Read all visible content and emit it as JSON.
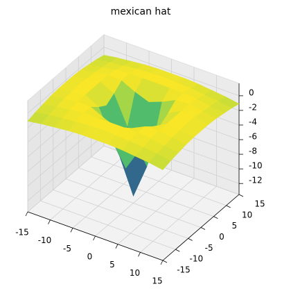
{
  "chart_data": {
    "type": "surface",
    "title": "mexican hat",
    "x": [
      -15,
      -12,
      -9,
      -6,
      -3,
      0,
      3,
      6,
      9,
      12,
      15
    ],
    "y": [
      -15,
      -12,
      -9,
      -6,
      -3,
      0,
      3,
      6,
      9,
      12,
      15
    ],
    "z": [
      [
        -1.1,
        -0.8,
        -0.6,
        -0.4,
        -0.3,
        -0.3,
        -0.3,
        -0.4,
        -0.6,
        -0.8,
        -1.1
      ],
      [
        -0.8,
        -0.5,
        -0.3,
        -0.1,
        0.0,
        0.1,
        0.0,
        -0.1,
        -0.3,
        -0.5,
        -0.8
      ],
      [
        -0.6,
        -0.3,
        0.0,
        0.2,
        0.2,
        0.2,
        0.2,
        0.2,
        0.0,
        -0.3,
        -0.6
      ],
      [
        -0.4,
        -0.1,
        0.2,
        0.1,
        -0.8,
        -1.5,
        -0.8,
        0.1,
        0.2,
        -0.1,
        -0.4
      ],
      [
        -0.3,
        0.0,
        0.2,
        -0.8,
        -4.7,
        -7.8,
        -4.7,
        -0.8,
        0.2,
        0.0,
        -0.3
      ],
      [
        -0.3,
        0.1,
        0.2,
        -1.5,
        -7.8,
        -12.5,
        -7.8,
        -1.5,
        0.2,
        0.1,
        -0.3
      ],
      [
        -0.3,
        0.0,
        0.2,
        -0.8,
        -4.7,
        -7.8,
        -4.7,
        -0.8,
        0.2,
        0.0,
        -0.3
      ],
      [
        -0.4,
        -0.1,
        0.2,
        0.1,
        -0.8,
        -1.5,
        -0.8,
        0.1,
        0.2,
        -0.1,
        -0.4
      ],
      [
        -0.6,
        -0.3,
        0.0,
        0.2,
        0.2,
        0.2,
        0.2,
        0.2,
        0.0,
        -0.3,
        -0.6
      ],
      [
        -0.8,
        -0.5,
        -0.3,
        -0.1,
        0.0,
        0.1,
        0.0,
        -0.1,
        -0.3,
        -0.5,
        -0.8
      ],
      [
        -1.1,
        -0.8,
        -0.6,
        -0.4,
        -0.3,
        -0.3,
        -0.3,
        -0.4,
        -0.6,
        -0.8,
        -1.1
      ]
    ],
    "xlim": [
      -15,
      15
    ],
    "ylim": [
      -15,
      15
    ],
    "zlim": [
      -13.5,
      1.7
    ],
    "xticks": [
      -15,
      -10,
      -5,
      0,
      5,
      10,
      15
    ],
    "yticks": [
      -15,
      -10,
      -5,
      0,
      5,
      10,
      15
    ],
    "zticks": [
      -12,
      -10,
      -8,
      -6,
      -4,
      -2,
      0
    ],
    "colormap": "viridis",
    "grid": true
  }
}
